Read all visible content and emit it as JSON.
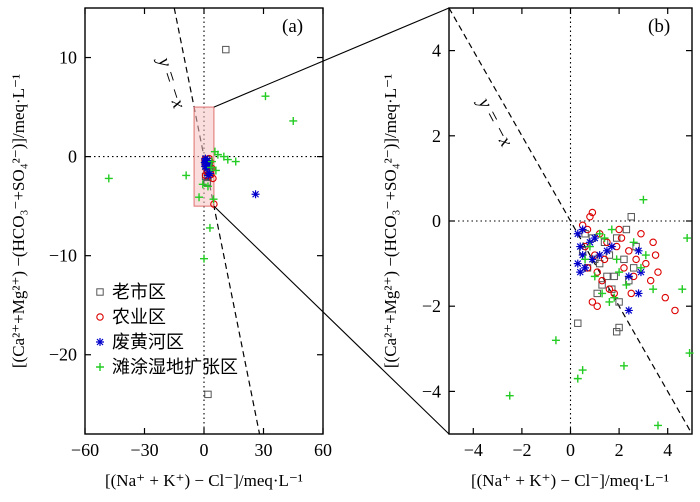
{
  "chart_data": [
    {
      "panel_label": "(a)",
      "type": "scatter",
      "xlabel": "[(Na⁺ + K⁺) − Cl⁻]/meq·L⁻¹",
      "ylabel": "[(Ca²⁺+Mg²⁺) −(HCO₃⁻+SO₄²⁻)]/meq·L⁻¹",
      "xlim": [
        -60,
        60
      ],
      "ylim": [
        -28,
        15
      ],
      "xticks": [
        -60,
        -30,
        0,
        30,
        60
      ],
      "yticks": [
        -20,
        -10,
        0,
        10
      ],
      "line_label": "y = −x",
      "legend_position": "bottom-left",
      "legend": [
        "老市区",
        "农业区",
        "废黄河区",
        "滩涂湿地扩张区"
      ],
      "series": [
        {
          "name": "老市区",
          "marker": "square",
          "color": "#555555",
          "points": [
            [
              11,
              10.8
            ],
            [
              2,
              -24
            ],
            [
              0.5,
              -0.5
            ],
            [
              1,
              -1
            ],
            [
              1.8,
              -1.6
            ],
            [
              2.6,
              -1.2
            ],
            [
              0.8,
              -2
            ],
            [
              1.6,
              -2.6
            ],
            [
              2.2,
              -0.9
            ],
            [
              3,
              -1.5
            ],
            [
              1.2,
              -0.3
            ],
            [
              2,
              -2.1
            ]
          ]
        },
        {
          "name": "农业区",
          "marker": "circle",
          "color": "#dd0000",
          "points": [
            [
              4,
              -1.2
            ],
            [
              4.5,
              -2.2
            ],
            [
              0.5,
              -0.3
            ],
            [
              1,
              -0.8
            ],
            [
              1.5,
              -1.5
            ],
            [
              2,
              -1
            ],
            [
              3,
              -0.5
            ],
            [
              3.5,
              -1.8
            ],
            [
              0.8,
              -1.9
            ],
            [
              2.5,
              -0.2
            ],
            [
              5,
              -4.8
            ]
          ]
        },
        {
          "name": "废黄河区",
          "marker": "star",
          "color": "#0000cc",
          "points": [
            [
              26,
              -3.8
            ],
            [
              0.4,
              -0.6
            ],
            [
              0.6,
              -1
            ],
            [
              1,
              -0.5
            ],
            [
              1.5,
              -1.2
            ],
            [
              2.5,
              -0.8
            ],
            [
              3,
              -1.7
            ],
            [
              0.7,
              -0.2
            ],
            [
              2.1,
              -1.9
            ],
            [
              1.8,
              -0.4
            ]
          ]
        },
        {
          "name": "滩涂湿地扩张区",
          "marker": "plus",
          "color": "#22cc22",
          "points": [
            [
              -48,
              -2.2
            ],
            [
              31,
              6.1
            ],
            [
              45,
              3.6
            ],
            [
              16,
              -0.5
            ],
            [
              -9,
              -1.9
            ],
            [
              0,
              -10.3
            ],
            [
              3,
              -7.2
            ],
            [
              -2.5,
              -4.1
            ],
            [
              -0.6,
              -2.8
            ],
            [
              5.5,
              0.5
            ],
            [
              10,
              0
            ],
            [
              12,
              -0.3
            ],
            [
              4,
              -0.5
            ],
            [
              3.5,
              -1.1
            ],
            [
              2,
              -3
            ],
            [
              6,
              -1.4
            ],
            [
              7,
              0.2
            ],
            [
              4.8,
              -4.3
            ]
          ]
        }
      ]
    },
    {
      "panel_label": "(b)",
      "type": "scatter",
      "xlabel": "[(Na⁺ + K⁺) − Cl⁻]/meq·L⁻¹",
      "ylabel": "[(Ca²⁺+Mg²⁺) −(HCO₃⁻+SO₄²⁻)]/meq·L⁻¹",
      "xlim": [
        -5,
        5
      ],
      "ylim": [
        -5,
        5
      ],
      "xticks": [
        -4,
        -2,
        0,
        2,
        4
      ],
      "yticks": [
        -4,
        -2,
        0,
        2,
        4
      ],
      "line_label": "y = −x",
      "series": [
        {
          "name": "老市区",
          "marker": "square",
          "color": "#555555",
          "points": [
            [
              2.5,
              0.1
            ],
            [
              0.3,
              -2.4
            ],
            [
              2,
              -2.5
            ],
            [
              1.9,
              -2.6
            ],
            [
              2.3,
              -0.2
            ],
            [
              2.7,
              -0.6
            ],
            [
              1.5,
              -1.3
            ],
            [
              1.7,
              -1.6
            ],
            [
              0.5,
              -0.7
            ],
            [
              1.2,
              -1
            ],
            [
              1.8,
              -1.3
            ],
            [
              2.2,
              -0.9
            ],
            [
              0.9,
              -0.4
            ],
            [
              1.4,
              -0.5
            ],
            [
              2.4,
              -1.4
            ],
            [
              0.7,
              -1.1
            ],
            [
              1.1,
              -1.7
            ],
            [
              1.6,
              -0.8
            ],
            [
              2,
              -1.9
            ],
            [
              1.3,
              -1.5
            ],
            [
              0.6,
              -0.3
            ],
            [
              1,
              -0.9
            ],
            [
              1.9,
              -0.4
            ],
            [
              2.6,
              -1.1
            ]
          ]
        },
        {
          "name": "农业区",
          "marker": "circle",
          "color": "#dd0000",
          "points": [
            [
              0.9,
              0.2
            ],
            [
              0.8,
              0.1
            ],
            [
              0.5,
              -0.1
            ],
            [
              1.2,
              -0.3
            ],
            [
              1.5,
              -0.5
            ],
            [
              2.1,
              -0.4
            ],
            [
              3.4,
              -0.5
            ],
            [
              3.5,
              -0.8
            ],
            [
              3.6,
              -1.2
            ],
            [
              3.9,
              -1.8
            ],
            [
              4.3,
              -2.1
            ],
            [
              1,
              -0.8
            ],
            [
              0.7,
              -1.1
            ],
            [
              1.3,
              -1.4
            ],
            [
              1.8,
              -1.7
            ],
            [
              2.2,
              -1.1
            ],
            [
              2.6,
              -1.3
            ],
            [
              2.4,
              -0.7
            ],
            [
              3.1,
              -1
            ],
            [
              0.9,
              -1.9
            ],
            [
              1.4,
              -0.9
            ],
            [
              1.9,
              -0.6
            ],
            [
              2.9,
              -0.3
            ],
            [
              0.6,
              -0.6
            ],
            [
              1.1,
              -1.2
            ],
            [
              1.6,
              -1.6
            ],
            [
              2.7,
              -0.9
            ],
            [
              3.3,
              -1.4
            ],
            [
              1.1,
              -2
            ],
            [
              2.5,
              -1.7
            ],
            [
              0.7,
              -0.2
            ],
            [
              2,
              -0.2
            ]
          ]
        },
        {
          "name": "废黄河区",
          "marker": "star",
          "color": "#0000cc",
          "points": [
            [
              0.3,
              -0.3
            ],
            [
              0.4,
              -0.6
            ],
            [
              0.5,
              -0.8
            ],
            [
              0.3,
              -1
            ],
            [
              0.6,
              -1.1
            ],
            [
              0.8,
              -0.5
            ],
            [
              1,
              -0.4
            ],
            [
              1.5,
              -0.7
            ],
            [
              2.4,
              -1.3
            ],
            [
              2.8,
              -0.7
            ],
            [
              2.8,
              -1.7
            ],
            [
              2.4,
              -2.1
            ],
            [
              2.9,
              -1.2
            ],
            [
              0.5,
              -0.2
            ],
            [
              0.9,
              -0.9
            ],
            [
              1.2,
              -0.8
            ],
            [
              1.7,
              -0.6
            ],
            [
              0.4,
              -1.2
            ]
          ]
        },
        {
          "name": "滩涂湿地扩张区",
          "marker": "plus",
          "color": "#22cc22",
          "points": [
            [
              -2.5,
              -4.1
            ],
            [
              -0.6,
              -2.8
            ],
            [
              0.3,
              -3.7
            ],
            [
              0.5,
              -3.5
            ],
            [
              3,
              0.5
            ],
            [
              4.8,
              -0.4
            ],
            [
              4.6,
              -1.6
            ],
            [
              4.9,
              -3.1
            ],
            [
              3.6,
              -4.8
            ],
            [
              2.2,
              -3.4
            ],
            [
              1.8,
              -1.8
            ],
            [
              1.6,
              -1.9
            ],
            [
              1.2,
              -0.3
            ],
            [
              1.4,
              -0.4
            ],
            [
              0.8,
              -0.6
            ],
            [
              1.9,
              -0.9
            ],
            [
              2.3,
              -1.5
            ],
            [
              2.6,
              -0.5
            ],
            [
              3.4,
              -1.6
            ],
            [
              1,
              -1.3
            ],
            [
              1.7,
              -0.2
            ],
            [
              0.6,
              -0.9
            ],
            [
              2,
              -1.2
            ],
            [
              3.1,
              -0.8
            ],
            [
              1.3,
              -1.7
            ],
            [
              2.9,
              -1.1
            ]
          ]
        }
      ]
    }
  ]
}
